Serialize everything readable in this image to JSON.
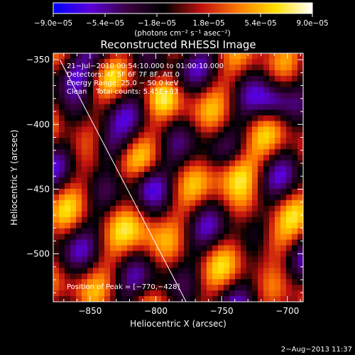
{
  "chart_data": {
    "type": "heatmap",
    "title": "Reconstructed RHESSI Image",
    "xlabel": "Heliocentric X (arcsec)",
    "ylabel": "Heliocentric Y (arcsec)",
    "xlim": [
      -878,
      -688
    ],
    "ylim": [
      -537,
      -345
    ],
    "x_ticks": [
      -850,
      -800,
      -750,
      -700
    ],
    "x_tick_labels": [
      "−850",
      "−800",
      "−750",
      "−700"
    ],
    "y_ticks": [
      -350,
      -400,
      -450,
      -500
    ],
    "y_tick_labels": [
      "−350",
      "−400",
      "−450",
      "−500"
    ],
    "colorbar": {
      "range": [
        -9e-05,
        9e-05
      ],
      "tick_values": [
        -9e-05,
        -5.4e-05,
        -1.8e-05,
        1.8e-05,
        5.4e-05,
        9e-05
      ],
      "tick_labels": [
        "−9.0e−05",
        "−5.4e−05",
        "−1.8e−05",
        "1.8e−05",
        "5.4e−05",
        "9.0e−05"
      ],
      "unit_label": "(photons cm⁻² s⁻¹ asec⁻²)",
      "colormap": [
        "#0000ff",
        "#5a00d8",
        "#3a0040",
        "#000000",
        "#c01010",
        "#ff7a00",
        "#ffe000",
        "#ffffff"
      ]
    },
    "annotations": {
      "time": "21−Jul−2010 00:54:10.000 to 01:00:10.000",
      "detectors": "Detectors: 4F 5F 6F 7F 8F, Att 0",
      "energy": "Energy Range: 25.0 − 50.0 keV",
      "method": "Clean    Total counts: 5.45E+03",
      "peak": "Position of Peak = [−770,−428]"
    },
    "limb_line": {
      "x": [
        -873,
        -777
      ],
      "y": [
        -350,
        -537
      ]
    },
    "grid": false
  },
  "footer": {
    "date": "2−Aug−2013 11:37"
  }
}
